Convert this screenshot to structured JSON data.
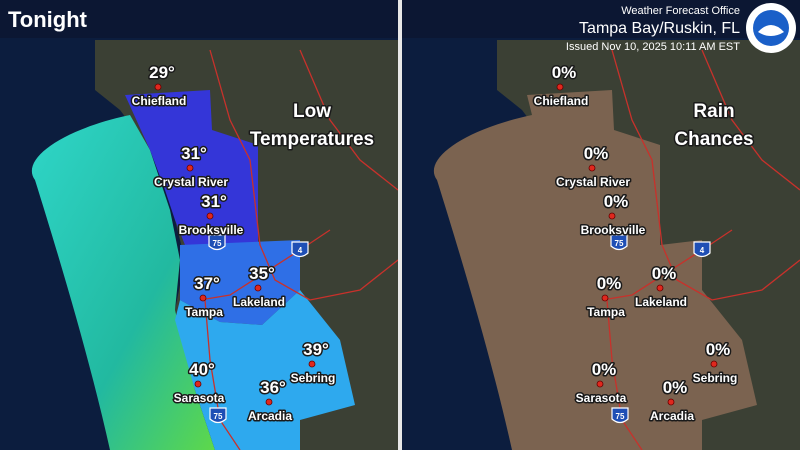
{
  "header": {
    "title": "Tonight",
    "office": "Weather Forecast Office",
    "location": "Tampa Bay/Ruskin, FL",
    "issued": "Issued Nov 10, 2025 10:11 AM EST"
  },
  "panels": [
    {
      "title_lines": [
        "Low",
        "Temperatures"
      ],
      "cities": [
        {
          "name": "Chiefland",
          "value": "29°"
        },
        {
          "name": "Crystal River",
          "value": "31°"
        },
        {
          "name": "Brooksville",
          "value": "31°"
        },
        {
          "name": "Tampa",
          "value": "37°"
        },
        {
          "name": "Lakeland",
          "value": "35°"
        },
        {
          "name": "Sebring",
          "value": "39°"
        },
        {
          "name": "Sarasota",
          "value": "40°"
        },
        {
          "name": "Arcadia",
          "value": "36°"
        }
      ],
      "shields": [
        "75",
        "4",
        "75"
      ]
    },
    {
      "title_lines": [
        "Rain",
        "Chances"
      ],
      "cities": [
        {
          "name": "Chiefland",
          "value": "0%"
        },
        {
          "name": "Crystal River",
          "value": "0%"
        },
        {
          "name": "Brooksville",
          "value": "0%"
        },
        {
          "name": "Tampa",
          "value": "0%"
        },
        {
          "name": "Lakeland",
          "value": "0%"
        },
        {
          "name": "Sebring",
          "value": "0%"
        },
        {
          "name": "Sarasota",
          "value": "0%"
        },
        {
          "name": "Arcadia",
          "value": "0%"
        }
      ],
      "shields": [
        "75",
        "4",
        "75"
      ]
    }
  ]
}
